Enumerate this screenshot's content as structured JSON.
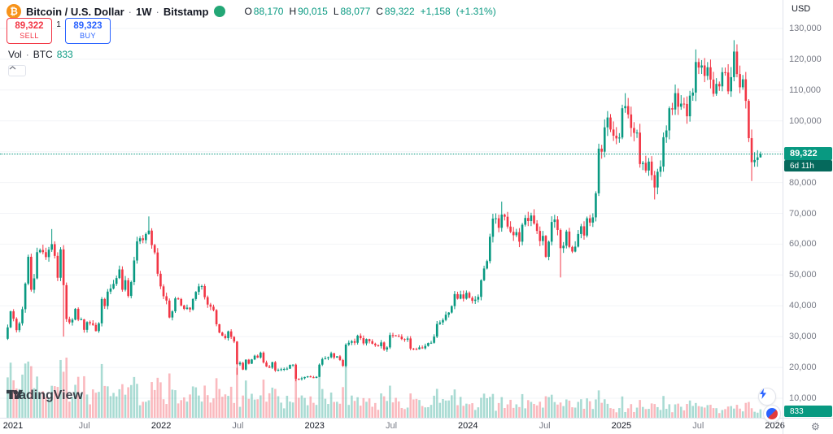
{
  "header": {
    "symbol_title": "Bitcoin / U.S. Dollar",
    "separator": "·",
    "interval": "1W",
    "exchange": "Bitstamp",
    "ohlc": {
      "o_label": "O",
      "o": "88,170",
      "h_label": "H",
      "h": "90,015",
      "l_label": "L",
      "l": "88,077",
      "c_label": "C",
      "c": "89,322",
      "change": "+1,158",
      "change_pct": "(+1.31%)"
    },
    "sell": {
      "price": "89,322",
      "label": "SELL"
    },
    "buy": {
      "price": "89,323",
      "label": "BUY"
    },
    "spread": "1",
    "volume_row": {
      "label": "Vol",
      "separator": "·",
      "unit": "BTC",
      "value": "833"
    }
  },
  "axes": {
    "currency_label": "USD",
    "price_ticks": [
      {
        "value": 130000,
        "label": "130,000"
      },
      {
        "value": 120000,
        "label": "120,000"
      },
      {
        "value": 110000,
        "label": "110,000"
      },
      {
        "value": 100000,
        "label": "100,000"
      },
      {
        "value": 90000,
        "label": "90,000"
      },
      {
        "value": 80000,
        "label": "80,000"
      },
      {
        "value": 70000,
        "label": "70,000"
      },
      {
        "value": 60000,
        "label": "60,000"
      },
      {
        "value": 50000,
        "label": "50,000"
      },
      {
        "value": 40000,
        "label": "40,000"
      },
      {
        "value": 30000,
        "label": "30,000"
      },
      {
        "value": 20000,
        "label": "20,000"
      },
      {
        "value": 10000,
        "label": "10,000"
      }
    ],
    "time_ticks": [
      {
        "t": 2021.0,
        "label": "2021",
        "major": true
      },
      {
        "t": 2021.5,
        "label": "Jul",
        "major": false
      },
      {
        "t": 2022.0,
        "label": "2022",
        "major": true
      },
      {
        "t": 2022.5,
        "label": "Jul",
        "major": false
      },
      {
        "t": 2023.0,
        "label": "2023",
        "major": true
      },
      {
        "t": 2023.5,
        "label": "Jul",
        "major": false
      },
      {
        "t": 2024.0,
        "label": "2024",
        "major": true
      },
      {
        "t": 2024.5,
        "label": "Jul",
        "major": false
      },
      {
        "t": 2025.0,
        "label": "2025",
        "major": true
      },
      {
        "t": 2025.5,
        "label": "Jul",
        "major": false
      },
      {
        "t": 2026.0,
        "label": "2026",
        "major": true
      }
    ]
  },
  "price_line": {
    "price": 89322,
    "label": "89,322",
    "countdown": "6d 11h"
  },
  "volume_badge": "833",
  "watermark": "TradingView",
  "colors": {
    "up": "#089981",
    "down": "#F23645",
    "vol_up": "rgba(8,153,129,0.35)",
    "vol_down": "rgba(242,54,69,0.35)",
    "grid": "#f2f4f7",
    "accent_blue": "#2962FF",
    "bitcoin_orange": "#F7931A",
    "badge_green": "#089981",
    "countdown_green": "#05695C",
    "text_dark": "#131722",
    "text_gray": "#787B86",
    "axis_border": "#E0E3EB"
  },
  "chart_data": {
    "type": "candlestick",
    "title": "Bitcoin / U.S. Dollar, 1W, Bitstamp",
    "ylabel": "Price (USD)",
    "ylim": [
      10000,
      130000
    ],
    "xrange": [
      "2021-01",
      "2025-12"
    ],
    "grid": false,
    "legend_position": "none",
    "values_unit": "USD thousands (multiply by 1000)",
    "first_open": 29.3,
    "years_order": [
      "2021",
      "2022",
      "2023",
      "2024",
      "2025"
    ],
    "weekly_closes": {
      "2021": [
        33.0,
        38.2,
        35.8,
        32.1,
        34.3,
        38.9,
        47.2,
        55.9,
        45.2,
        48.9,
        57.4,
        58.1,
        57.4,
        55.8,
        58.2,
        60.0,
        56.2,
        49.1,
        58.3,
        46.7,
        35.7,
        34.6,
        35.5,
        39.0,
        35.5,
        35.6,
        32.2,
        34.7,
        34.3,
        33.8,
        31.8,
        34.3,
        42.2,
        39.9,
        44.6,
        45.6,
        47.1,
        49.0,
        51.8,
        45.2,
        48.3,
        43.2,
        47.7,
        54.7,
        60.9,
        61.9,
        61.3,
        63.3,
        64.4,
        59.7,
        57.3,
        50.4
      ],
      "2022": [
        46.3,
        43.1,
        41.7,
        36.2,
        38.2,
        42.4,
        42.2,
        40.1,
        39.0,
        39.4,
        38.8,
        42.2,
        44.5,
        46.3,
        46.4,
        42.8,
        40.4,
        39.7,
        38.6,
        34.0,
        31.3,
        30.3,
        29.5,
        31.7,
        29.9,
        28.4,
        21.0,
        21.5,
        19.3,
        22.5,
        21.2,
        22.6,
        23.8,
        23.2,
        24.8,
        21.6,
        20.3,
        19.9,
        21.7,
        19.0,
        19.2,
        19.4,
        19.5,
        19.6,
        20.8,
        20.9,
        16.3,
        16.2,
        16.5,
        16.9,
        17.1,
        16.8
      ],
      "2023": [
        16.6,
        16.95,
        20.9,
        22.7,
        23.0,
        23.3,
        24.6,
        23.2,
        23.6,
        22.4,
        20.5,
        27.4,
        28.0,
        28.5,
        28.0,
        30.3,
        29.5,
        27.8,
        29.2,
        28.5,
        27.7,
        27.2,
        26.9,
        28.1,
        25.8,
        26.5,
        30.5,
        30.4,
        30.2,
        30.0,
        29.2,
        29.0,
        29.4,
        26.1,
        26.0,
        25.9,
        26.5,
        26.2,
        27.0,
        27.9,
        28.0,
        30.0,
        34.1,
        34.6,
        35.4,
        37.1,
        37.8,
        39.9,
        43.8,
        42.3,
        43.7,
        42.3
      ],
      "2024": [
        44.2,
        42.6,
        41.6,
        42.0,
        42.9,
        48.3,
        52.1,
        54.5,
        62.4,
        68.3,
        68.4,
        65.3,
        69.6,
        68.9,
        65.7,
        64.0,
        62.9,
        63.9,
        60.8,
        66.3,
        68.5,
        67.5,
        69.3,
        66.7,
        64.3,
        61.0,
        62.7,
        55.9,
        60.8,
        67.2,
        68.0,
        64.6,
        58.7,
        59.5,
        64.1,
        59.1,
        57.6,
        59.2,
        63.3,
        65.8,
        62.8,
        68.4,
        67.0,
        68.7,
        76.5,
        91.0,
        90.0,
        97.9,
        101.1,
        97.2,
        95.2,
        94.3
      ],
      "2025": [
        94.6,
        104.1,
        104.8,
        102.1,
        97.7,
        96.1,
        96.2,
        86.0,
        86.4,
        83.9,
        86.8,
        82.4,
        78.4,
        83.5,
        85.2,
        94.7,
        96.9,
        104.1,
        103.7,
        109.0,
        104.6,
        105.6,
        105.5,
        101.5,
        108.2,
        109.2,
        119.1,
        117.3,
        118.0,
        114.6,
        117.4,
        113.4,
        108.8,
        112.0,
        111.2,
        115.8,
        115.7,
        109.6,
        114.2,
        122.5,
        115.2,
        110.9,
        113.5,
        106.5,
        94.4,
        86.6,
        87.3,
        88.16,
        89.32
      ]
    },
    "wick_overrides": {
      "15": {
        "h": 64.9
      },
      "19": {
        "l": 30.0
      },
      "48": {
        "h": 69.0
      },
      "78": {
        "l": 17.6
      },
      "98": {
        "l": 15.5
      },
      "168": {
        "h": 73.8
      },
      "188": {
        "l": 49.2
      },
      "210": {
        "h": 109.0
      },
      "220": {
        "l": 74.5
      },
      "234": {
        "h": 123.2
      },
      "247": {
        "h": 126.2
      },
      "253": {
        "l": 80.5
      }
    },
    "last_candle": {
      "open": 88170,
      "high": 90015,
      "low": 88077,
      "close": 89322,
      "change": 1158,
      "change_pct": 1.31
    },
    "current_volume_btc": 833
  }
}
